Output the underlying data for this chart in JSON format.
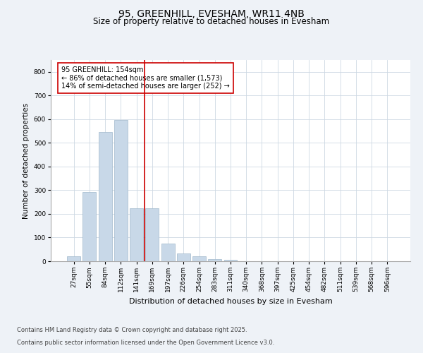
{
  "title": "95, GREENHILL, EVESHAM, WR11 4NB",
  "subtitle": "Size of property relative to detached houses in Evesham",
  "xlabel": "Distribution of detached houses by size in Evesham",
  "ylabel": "Number of detached properties",
  "categories": [
    "27sqm",
    "55sqm",
    "84sqm",
    "112sqm",
    "141sqm",
    "169sqm",
    "197sqm",
    "226sqm",
    "254sqm",
    "283sqm",
    "311sqm",
    "340sqm",
    "368sqm",
    "397sqm",
    "425sqm",
    "454sqm",
    "482sqm",
    "511sqm",
    "539sqm",
    "568sqm",
    "596sqm"
  ],
  "bar_heights": [
    20,
    292,
    547,
    597,
    225,
    225,
    75,
    34,
    22,
    9,
    7,
    0,
    0,
    0,
    0,
    0,
    0,
    0,
    0,
    0,
    0
  ],
  "bar_color": "#c8d8e8",
  "bar_edgecolor": "#a0b8cc",
  "property_line_x": 4.5,
  "property_line_color": "#cc0000",
  "annotation_text": "95 GREENHILL: 154sqm\n← 86% of detached houses are smaller (1,573)\n14% of semi-detached houses are larger (252) →",
  "ylim": [
    0,
    850
  ],
  "yticks": [
    0,
    100,
    200,
    300,
    400,
    500,
    600,
    700,
    800
  ],
  "background_color": "#eef2f7",
  "plot_background": "#ffffff",
  "grid_color": "#cdd8e3",
  "footer_line1": "Contains HM Land Registry data © Crown copyright and database right 2025.",
  "footer_line2": "Contains public sector information licensed under the Open Government Licence v3.0.",
  "title_fontsize": 10,
  "subtitle_fontsize": 8.5,
  "xlabel_fontsize": 8,
  "ylabel_fontsize": 7.5,
  "tick_fontsize": 6.5,
  "annotation_fontsize": 7,
  "footer_fontsize": 6
}
